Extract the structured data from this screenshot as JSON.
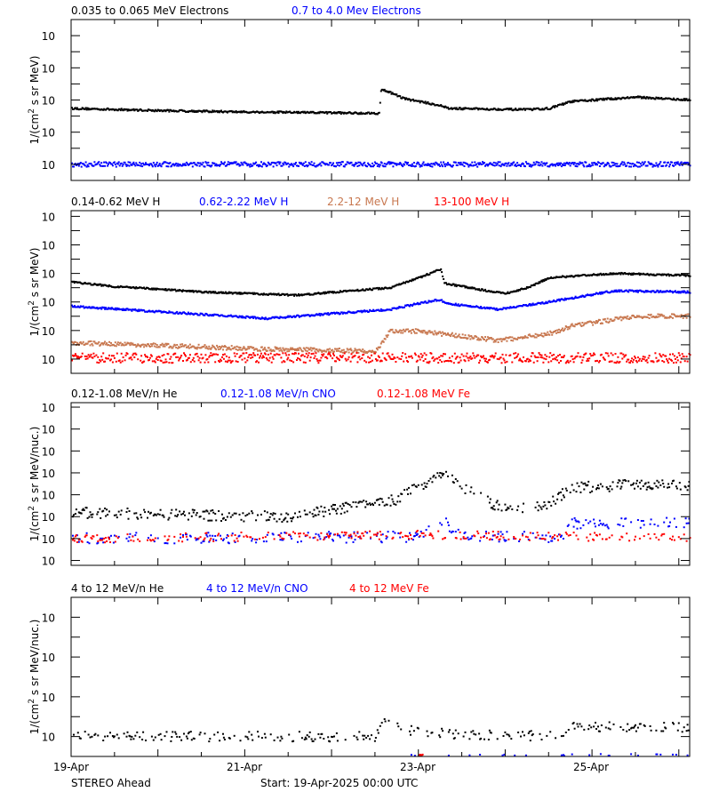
{
  "chart_data": [
    {
      "type": "scatter",
      "ylabel": {
        "pre": "1/(cm",
        "sup": "2",
        "post": " s sr MeV)"
      },
      "yscale": "log",
      "ylim": [
        0.001,
        10000000
      ],
      "xlim": [
        "2025-04-19 00:00",
        "2025-04-26 03:00"
      ],
      "series": [
        {
          "name": "0.035 to 0.065 MeV Electrons",
          "color": "#000000",
          "points": [
            [
              "2025-04-19 00:00",
              30
            ],
            [
              "2025-04-20 00:00",
              22
            ],
            [
              "2025-04-21 00:00",
              18
            ],
            [
              "2025-04-22 13:00",
              15
            ],
            [
              "2025-04-22 13:30",
              500
            ],
            [
              "2025-04-22 20:00",
              120
            ],
            [
              "2025-04-23 06:00",
              45
            ],
            [
              "2025-04-23 08:00",
              30
            ],
            [
              "2025-04-24 06:00",
              25
            ],
            [
              "2025-04-24 12:00",
              30
            ],
            [
              "2025-04-24 18:00",
              80
            ],
            [
              "2025-04-25 12:00",
              150
            ],
            [
              "2025-04-26 03:00",
              100
            ]
          ]
        },
        {
          "name": "0.7 to 4.0 Mev Electrons",
          "color": "#0000ff",
          "points": [
            [
              "2025-04-19 00:00",
              0.01
            ],
            [
              "2025-04-26 03:00",
              0.01
            ]
          ]
        }
      ]
    },
    {
      "type": "scatter",
      "ylabel": {
        "pre": "1/(cm",
        "sup": "2",
        "post": " s sr MeV)"
      },
      "yscale": "log",
      "ylim": [
        1e-05,
        2500000
      ],
      "xlim": [
        "2025-04-19 00:00",
        "2025-04-26 03:00"
      ],
      "series": [
        {
          "name": "0.14-0.62 MeV H",
          "color": "#000000",
          "points": [
            [
              "2025-04-19 00:00",
              25
            ],
            [
              "2025-04-19 12:00",
              12
            ],
            [
              "2025-04-20 12:00",
              5
            ],
            [
              "2025-04-21 14:00",
              3
            ],
            [
              "2025-04-22 16:00",
              10
            ],
            [
              "2025-04-23 00:00",
              50
            ],
            [
              "2025-04-23 06:00",
              200
            ],
            [
              "2025-04-23 07:00",
              20
            ],
            [
              "2025-04-23 19:00",
              6
            ],
            [
              "2025-04-24 00:00",
              4
            ],
            [
              "2025-04-24 06:00",
              10
            ],
            [
              "2025-04-24 12:00",
              50
            ],
            [
              "2025-04-25 06:00",
              100
            ],
            [
              "2025-04-26 03:00",
              70
            ]
          ]
        },
        {
          "name": "0.62-2.22 MeV H",
          "color": "#0000ff",
          "points": [
            [
              "2025-04-19 00:00",
              0.5
            ],
            [
              "2025-04-21 06:00",
              0.07
            ],
            [
              "2025-04-22 16:00",
              0.3
            ],
            [
              "2025-04-23 00:00",
              0.8
            ],
            [
              "2025-04-23 06:00",
              1.5
            ],
            [
              "2025-04-23 07:00",
              0.8
            ],
            [
              "2025-04-23 22:00",
              0.3
            ],
            [
              "2025-04-24 12:00",
              1
            ],
            [
              "2025-04-25 06:00",
              6
            ],
            [
              "2025-04-26 03:00",
              5
            ]
          ]
        },
        {
          "name": "2.2-12 MeV H",
          "color": "#c87850",
          "points": [
            [
              "2025-04-19 00:00",
              0.0014
            ],
            [
              "2025-04-21 06:00",
              0.0005
            ],
            [
              "2025-04-22 12:00",
              0.00035
            ],
            [
              "2025-04-22 16:00",
              0.009
            ],
            [
              "2025-04-23 00:00",
              0.009
            ],
            [
              "2025-04-23 22:00",
              0.002
            ],
            [
              "2025-04-24 12:00",
              0.006
            ],
            [
              "2025-04-24 18:00",
              0.02
            ],
            [
              "2025-04-25 12:00",
              0.1
            ],
            [
              "2025-04-26 03:00",
              0.1
            ]
          ]
        },
        {
          "name": "13-100 MeV H",
          "color": "#ff0000",
          "points": [
            [
              "2025-04-19 00:00",
              0.00012
            ],
            [
              "2025-04-26 03:00",
              0.00012
            ]
          ]
        }
      ]
    },
    {
      "type": "scatter",
      "ylabel": {
        "pre": "1/(cm",
        "sup": "2",
        "post": " s sr MeV/nuc.)"
      },
      "yscale": "log",
      "ylim": [
        0.0006,
        16000
      ],
      "xlim": [
        "2025-04-19 00:00",
        "2025-04-26 03:00"
      ],
      "series": [
        {
          "name": "0.12-1.08 MeV/n He",
          "color": "#000000",
          "points": [
            [
              "2025-04-19 00:00",
              0.15
            ],
            [
              "2025-04-21 12:00",
              0.1
            ],
            [
              "2025-04-22 00:00",
              0.2
            ],
            [
              "2025-04-22 18:00",
              0.6
            ],
            [
              "2025-04-23 06:00",
              10
            ],
            [
              "2025-04-23 12:00",
              2
            ],
            [
              "2025-04-24 00:00",
              0.2
            ],
            [
              "2025-04-24 12:00",
              0.4
            ],
            [
              "2025-04-24 18:00",
              2
            ],
            [
              "2025-04-25 12:00",
              3
            ],
            [
              "2025-04-26 03:00",
              2.5
            ]
          ]
        },
        {
          "name": "0.12-1.08 MeV/n CNO",
          "color": "#0000ff",
          "points": [
            [
              "2025-04-19 00:00",
              0.01
            ],
            [
              "2025-04-23 00:00",
              0.012
            ],
            [
              "2025-04-23 06:00",
              0.08
            ],
            [
              "2025-04-23 12:00",
              0.012
            ],
            [
              "2025-04-24 16:00",
              0.012
            ],
            [
              "2025-04-24 18:00",
              0.05
            ],
            [
              "2025-04-26 03:00",
              0.05
            ]
          ]
        },
        {
          "name": "0.12-1.08 MeV Fe",
          "color": "#ff0000",
          "points": [
            [
              "2025-04-19 00:00",
              0.01
            ],
            [
              "2025-04-23 06:00",
              0.015
            ],
            [
              "2025-04-26 03:00",
              0.01
            ]
          ]
        }
      ]
    },
    {
      "type": "scatter",
      "ylabel": {
        "pre": "1/(cm",
        "sup": "2",
        "post": " s sr MeV/nuc.)"
      },
      "yscale": "log",
      "ylim": [
        1e-05,
        1000
      ],
      "xlim": [
        "2025-04-19 00:00",
        "2025-04-26 03:00"
      ],
      "series": [
        {
          "name": "4 to 12 MeV/n He",
          "color": "#000000",
          "points": [
            [
              "2025-04-19 00:00",
              0.0001
            ],
            [
              "2025-04-22 12:00",
              0.0001
            ],
            [
              "2025-04-22 14:00",
              0.0005
            ],
            [
              "2025-04-23 00:00",
              0.00015
            ],
            [
              "2025-04-24 16:00",
              0.0001
            ],
            [
              "2025-04-24 18:00",
              0.0003
            ],
            [
              "2025-04-26 03:00",
              0.0003
            ]
          ]
        },
        {
          "name": "4 to 12 MeV/n CNO",
          "color": "#0000ff",
          "points": [
            [
              "2025-04-22 18:00",
              1.2e-05
            ],
            [
              "2025-04-26 03:00",
              1.2e-05
            ]
          ]
        },
        {
          "name": "4 to 12 MeV Fe",
          "color": "#ff0000",
          "points": [
            [
              "2025-04-23 00:00",
              1.2e-05
            ],
            [
              "2025-04-23 01:00",
              1.2e-05
            ]
          ]
        }
      ]
    }
  ],
  "x_axis": {
    "tick_labels": [
      "19-Apr",
      "21-Apr",
      "23-Apr",
      "25-Apr"
    ]
  },
  "footer": {
    "spacecraft": "STEREO Ahead",
    "start": "Start: 19-Apr-2025 00:00 UTC"
  }
}
